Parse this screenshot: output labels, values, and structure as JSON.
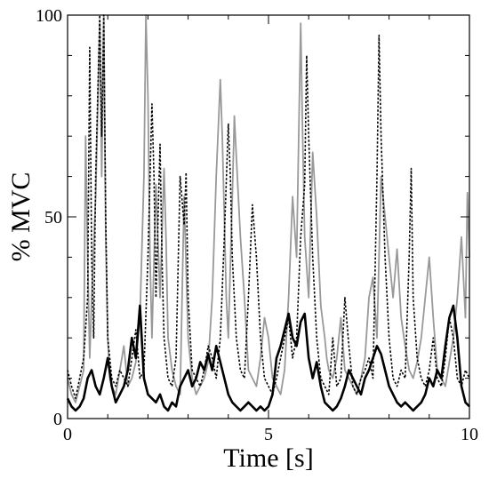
{
  "chart_data": {
    "type": "line",
    "title": "",
    "xlabel": "Time [s]",
    "ylabel": "% MVC",
    "xlim": [
      0,
      10
    ],
    "ylim": [
      0,
      100
    ],
    "xticks": [
      0,
      5,
      10
    ],
    "yticks": [
      0,
      50,
      100
    ],
    "grid": false,
    "legend": "none",
    "series": [
      {
        "style": "solid-gray",
        "color": "#999999",
        "x": [
          0,
          0.1,
          0.2,
          0.3,
          0.4,
          0.45,
          0.5,
          0.55,
          0.6,
          0.7,
          0.8,
          0.85,
          0.9,
          0.95,
          1.0,
          1.05,
          1.1,
          1.2,
          1.3,
          1.4,
          1.5,
          1.6,
          1.7,
          1.8,
          1.9,
          1.95,
          2.0,
          2.05,
          2.1,
          2.2,
          2.3,
          2.4,
          2.45,
          2.5,
          2.6,
          2.7,
          2.8,
          2.9,
          3.0,
          3.1,
          3.2,
          3.3,
          3.4,
          3.5,
          3.6,
          3.7,
          3.8,
          3.85,
          3.9,
          3.95,
          4.0,
          4.1,
          4.15,
          4.2,
          4.3,
          4.4,
          4.5,
          4.6,
          4.7,
          4.8,
          4.9,
          5.0,
          5.1,
          5.2,
          5.3,
          5.4,
          5.5,
          5.6,
          5.7,
          5.8,
          5.85,
          5.9,
          6.0,
          6.1,
          6.2,
          6.3,
          6.4,
          6.45,
          6.5,
          6.6,
          6.7,
          6.8,
          6.9,
          7.0,
          7.1,
          7.2,
          7.3,
          7.4,
          7.5,
          7.6,
          7.7,
          7.75,
          7.8,
          7.9,
          8.0,
          8.1,
          8.2,
          8.3,
          8.4,
          8.5,
          8.6,
          8.7,
          8.8,
          8.9,
          9.0,
          9.1,
          9.2,
          9.3,
          9.4,
          9.5,
          9.6,
          9.7,
          9.8,
          9.9,
          9.95,
          10.0
        ],
        "values": [
          10,
          6,
          4,
          8,
          12,
          70,
          40,
          15,
          30,
          55,
          98,
          60,
          100,
          45,
          20,
          10,
          8,
          6,
          12,
          18,
          8,
          10,
          14,
          25,
          60,
          100,
          80,
          40,
          20,
          58,
          30,
          62,
          45,
          20,
          12,
          8,
          6,
          55,
          20,
          10,
          6,
          8,
          10,
          14,
          30,
          60,
          84,
          70,
          50,
          30,
          20,
          55,
          75,
          65,
          45,
          30,
          12,
          10,
          8,
          15,
          25,
          20,
          10,
          8,
          6,
          12,
          30,
          55,
          40,
          98,
          70,
          45,
          30,
          66,
          50,
          28,
          20,
          15,
          12,
          10,
          15,
          25,
          12,
          10,
          8,
          6,
          10,
          15,
          30,
          35,
          20,
          40,
          60,
          50,
          40,
          30,
          42,
          25,
          18,
          12,
          10,
          14,
          20,
          30,
          40,
          25,
          12,
          10,
          8,
          14,
          20,
          30,
          45,
          25,
          56,
          40
        ]
      },
      {
        "style": "dotted-black",
        "color": "#000000",
        "x": [
          0,
          0.1,
          0.2,
          0.3,
          0.4,
          0.5,
          0.55,
          0.6,
          0.65,
          0.7,
          0.8,
          0.85,
          0.9,
          0.95,
          1.0,
          1.1,
          1.2,
          1.3,
          1.4,
          1.5,
          1.6,
          1.7,
          1.8,
          1.9,
          2.0,
          2.1,
          2.15,
          2.2,
          2.3,
          2.35,
          2.4,
          2.5,
          2.6,
          2.7,
          2.8,
          2.9,
          2.95,
          3.0,
          3.1,
          3.2,
          3.3,
          3.4,
          3.5,
          3.6,
          3.7,
          3.8,
          3.9,
          4.0,
          4.05,
          4.1,
          4.2,
          4.3,
          4.4,
          4.5,
          4.6,
          4.7,
          4.8,
          4.9,
          5.0,
          5.1,
          5.2,
          5.3,
          5.4,
          5.5,
          5.6,
          5.7,
          5.8,
          5.9,
          5.95,
          6.0,
          6.1,
          6.2,
          6.3,
          6.4,
          6.5,
          6.6,
          6.7,
          6.8,
          6.9,
          7.0,
          7.1,
          7.2,
          7.3,
          7.4,
          7.5,
          7.6,
          7.7,
          7.75,
          7.8,
          7.9,
          8.0,
          8.1,
          8.2,
          8.3,
          8.4,
          8.5,
          8.55,
          8.6,
          8.7,
          8.8,
          8.9,
          9.0,
          9.1,
          9.2,
          9.3,
          9.4,
          9.5,
          9.6,
          9.7,
          9.8,
          9.9,
          10.0
        ],
        "values": [
          12,
          8,
          5,
          10,
          15,
          30,
          92,
          40,
          20,
          60,
          100,
          70,
          100,
          50,
          20,
          10,
          8,
          12,
          10,
          8,
          15,
          22,
          10,
          12,
          40,
          78,
          60,
          30,
          68,
          40,
          20,
          10,
          8,
          15,
          60,
          48,
          61,
          30,
          12,
          10,
          8,
          12,
          18,
          15,
          10,
          20,
          45,
          73,
          60,
          40,
          20,
          12,
          10,
          30,
          53,
          40,
          20,
          10,
          8,
          6,
          10,
          15,
          20,
          25,
          15,
          20,
          45,
          58,
          90,
          70,
          40,
          20,
          10,
          8,
          6,
          20,
          8,
          10,
          30,
          18,
          8,
          6,
          10,
          12,
          15,
          10,
          60,
          95,
          70,
          40,
          20,
          10,
          8,
          12,
          10,
          40,
          62,
          30,
          15,
          10,
          8,
          12,
          20,
          10,
          8,
          15,
          25,
          20,
          10,
          8,
          12,
          10
        ]
      },
      {
        "style": "solid-black",
        "color": "#000000",
        "x": [
          0,
          0.1,
          0.2,
          0.3,
          0.4,
          0.5,
          0.6,
          0.7,
          0.8,
          0.9,
          1.0,
          1.1,
          1.2,
          1.3,
          1.4,
          1.5,
          1.6,
          1.7,
          1.8,
          1.9,
          2.0,
          2.1,
          2.2,
          2.3,
          2.4,
          2.5,
          2.6,
          2.7,
          2.8,
          2.9,
          3.0,
          3.1,
          3.2,
          3.3,
          3.4,
          3.5,
          3.6,
          3.7,
          3.8,
          3.9,
          4.0,
          4.1,
          4.2,
          4.3,
          4.4,
          4.5,
          4.6,
          4.7,
          4.8,
          4.9,
          5.0,
          5.1,
          5.2,
          5.3,
          5.4,
          5.5,
          5.6,
          5.7,
          5.8,
          5.9,
          6.0,
          6.1,
          6.2,
          6.3,
          6.4,
          6.5,
          6.6,
          6.7,
          6.8,
          6.9,
          7.0,
          7.1,
          7.2,
          7.3,
          7.4,
          7.5,
          7.6,
          7.7,
          7.8,
          7.9,
          8.0,
          8.1,
          8.2,
          8.3,
          8.4,
          8.5,
          8.6,
          8.7,
          8.8,
          8.9,
          9.0,
          9.1,
          9.2,
          9.3,
          9.4,
          9.5,
          9.6,
          9.7,
          9.8,
          9.9,
          10.0
        ],
        "values": [
          5,
          3,
          2,
          3,
          5,
          10,
          12,
          8,
          6,
          10,
          15,
          8,
          4,
          6,
          8,
          12,
          20,
          15,
          28,
          10,
          6,
          5,
          4,
          6,
          3,
          2,
          4,
          3,
          8,
          10,
          12,
          8,
          10,
          14,
          12,
          16,
          12,
          18,
          14,
          10,
          6,
          4,
          3,
          2,
          3,
          4,
          3,
          2,
          3,
          2,
          3,
          6,
          15,
          18,
          22,
          26,
          20,
          18,
          24,
          26,
          15,
          10,
          14,
          8,
          4,
          3,
          2,
          3,
          5,
          8,
          12,
          10,
          8,
          6,
          10,
          12,
          15,
          18,
          16,
          12,
          8,
          6,
          4,
          3,
          4,
          3,
          2,
          3,
          4,
          6,
          10,
          8,
          12,
          10,
          18,
          25,
          28,
          20,
          8,
          4,
          3
        ]
      }
    ]
  }
}
